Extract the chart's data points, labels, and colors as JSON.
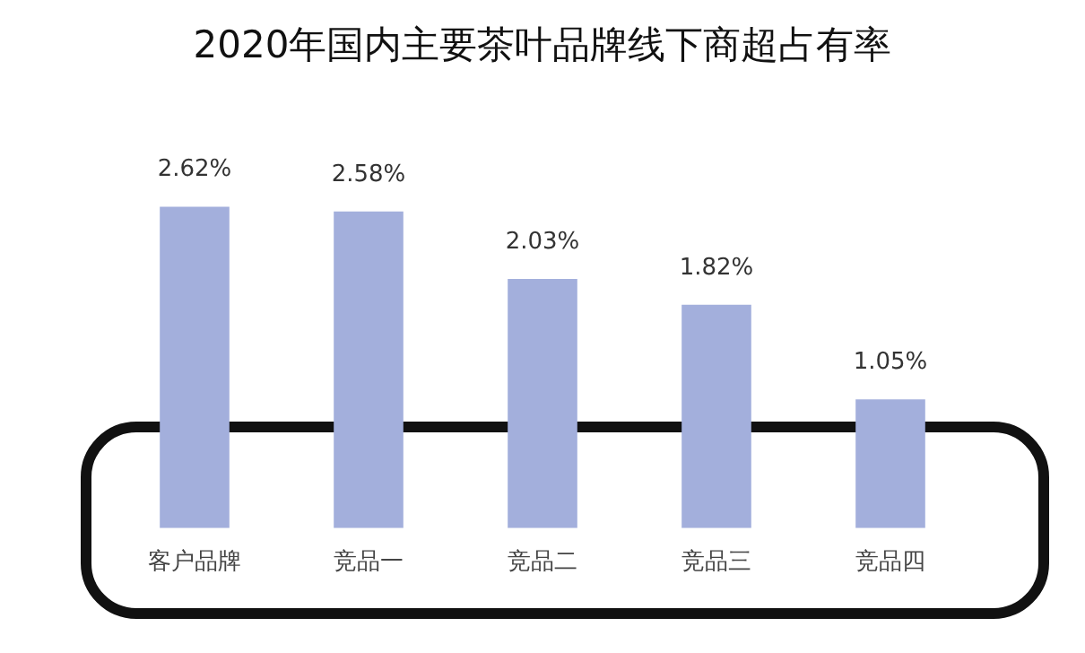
{
  "chart_data": {
    "type": "bar",
    "title": "2020年国内主要茶叶品牌线下商超占有率",
    "categories": [
      "客户品牌",
      "竞品一",
      "竞品二",
      "竞品三",
      "竞品四"
    ],
    "values": [
      2.62,
      2.58,
      2.03,
      1.82,
      1.05
    ],
    "value_labels": [
      "2.62%",
      "2.58%",
      "2.03%",
      "1.82%",
      "1.05%"
    ],
    "color": "#a3afdc",
    "grid": false,
    "legend": false
  }
}
